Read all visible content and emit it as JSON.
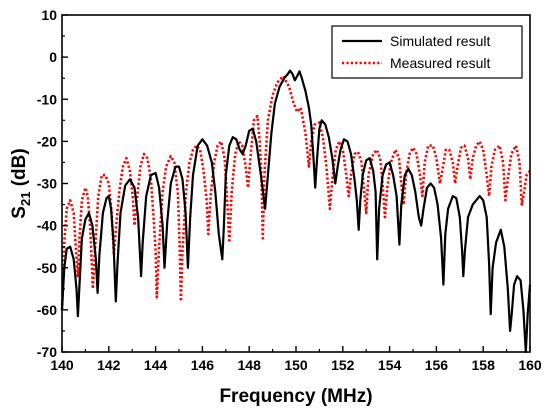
{
  "chart_data": {
    "type": "line",
    "xlabel": "Frequency (MHz)",
    "ylabel": {
      "base": "S",
      "sub": "21",
      "rest": " (dB)"
    },
    "xlim": [
      140,
      160
    ],
    "ylim": [
      -70,
      10
    ],
    "xticks": [
      "140",
      "142",
      "144",
      "146",
      "148",
      "150",
      "152",
      "154",
      "156",
      "158",
      "160"
    ],
    "yticks": [
      "10",
      "0",
      "-10",
      "-20",
      "-30",
      "-40",
      "-50",
      "-60",
      "-70"
    ],
    "legend_position": "top-right",
    "grid": false,
    "series": [
      {
        "name": "Simulated result",
        "color": "#000000",
        "style": "solid",
        "points": [
          [
            140.0,
            -60
          ],
          [
            140.1,
            -50
          ],
          [
            140.2,
            -45.5
          ],
          [
            140.35,
            -45
          ],
          [
            140.5,
            -48
          ],
          [
            140.62,
            -55
          ],
          [
            140.68,
            -61.5
          ],
          [
            140.75,
            -54
          ],
          [
            140.85,
            -43
          ],
          [
            141.0,
            -38.5
          ],
          [
            141.15,
            -37
          ],
          [
            141.3,
            -40
          ],
          [
            141.45,
            -48
          ],
          [
            141.52,
            -56
          ],
          [
            141.6,
            -47
          ],
          [
            141.75,
            -37
          ],
          [
            141.9,
            -33.5
          ],
          [
            142.0,
            -33
          ],
          [
            142.1,
            -36
          ],
          [
            142.2,
            -44
          ],
          [
            142.3,
            -58
          ],
          [
            142.37,
            -49
          ],
          [
            142.5,
            -37
          ],
          [
            142.7,
            -30.5
          ],
          [
            142.9,
            -29
          ],
          [
            143.1,
            -31
          ],
          [
            143.25,
            -38
          ],
          [
            143.38,
            -52
          ],
          [
            143.45,
            -44
          ],
          [
            143.6,
            -33
          ],
          [
            143.8,
            -28
          ],
          [
            144.0,
            -27.5
          ],
          [
            144.15,
            -31
          ],
          [
            144.3,
            -40
          ],
          [
            144.38,
            -50
          ],
          [
            144.5,
            -39
          ],
          [
            144.65,
            -30
          ],
          [
            144.85,
            -26
          ],
          [
            145.0,
            -26
          ],
          [
            145.15,
            -29
          ],
          [
            145.28,
            -37
          ],
          [
            145.38,
            -50
          ],
          [
            145.48,
            -38
          ],
          [
            145.6,
            -28
          ],
          [
            145.8,
            -21
          ],
          [
            146.0,
            -19.5
          ],
          [
            146.2,
            -21
          ],
          [
            146.4,
            -25
          ],
          [
            146.55,
            -32
          ],
          [
            146.7,
            -42
          ],
          [
            146.85,
            -48
          ],
          [
            146.92,
            -40
          ],
          [
            147.0,
            -28
          ],
          [
            147.15,
            -21
          ],
          [
            147.3,
            -19
          ],
          [
            147.45,
            -19.5
          ],
          [
            147.6,
            -22
          ],
          [
            147.72,
            -23
          ],
          [
            147.85,
            -21
          ],
          [
            148.0,
            -17.5
          ],
          [
            148.15,
            -17
          ],
          [
            148.3,
            -20
          ],
          [
            148.5,
            -28
          ],
          [
            148.68,
            -36
          ],
          [
            148.8,
            -28
          ],
          [
            148.95,
            -18
          ],
          [
            149.1,
            -11
          ],
          [
            149.3,
            -7
          ],
          [
            149.5,
            -5
          ],
          [
            149.65,
            -4
          ],
          [
            149.75,
            -3.2
          ],
          [
            149.85,
            -4
          ],
          [
            149.95,
            -5.5
          ],
          [
            150.05,
            -4.5
          ],
          [
            150.15,
            -3.4
          ],
          [
            150.25,
            -5
          ],
          [
            150.4,
            -8
          ],
          [
            150.55,
            -12
          ],
          [
            150.65,
            -16
          ],
          [
            150.75,
            -24
          ],
          [
            150.82,
            -31
          ],
          [
            150.9,
            -24
          ],
          [
            151.0,
            -17
          ],
          [
            151.1,
            -15
          ],
          [
            151.25,
            -16
          ],
          [
            151.4,
            -19
          ],
          [
            151.55,
            -24
          ],
          [
            151.68,
            -30
          ],
          [
            151.78,
            -26
          ],
          [
            151.9,
            -22
          ],
          [
            152.05,
            -19.5
          ],
          [
            152.2,
            -20
          ],
          [
            152.35,
            -23
          ],
          [
            152.5,
            -29
          ],
          [
            152.6,
            -34
          ],
          [
            152.68,
            -41
          ],
          [
            152.75,
            -34
          ],
          [
            152.85,
            -28
          ],
          [
            153.0,
            -24.5
          ],
          [
            153.15,
            -24
          ],
          [
            153.3,
            -27
          ],
          [
            153.4,
            -32
          ],
          [
            153.47,
            -48
          ],
          [
            153.55,
            -36
          ],
          [
            153.7,
            -28
          ],
          [
            153.85,
            -25.5
          ],
          [
            154.0,
            -25
          ],
          [
            154.15,
            -28
          ],
          [
            154.3,
            -33
          ],
          [
            154.42,
            -44.5
          ],
          [
            154.5,
            -35
          ],
          [
            154.65,
            -28
          ],
          [
            154.8,
            -26.5
          ],
          [
            154.95,
            -28
          ],
          [
            155.1,
            -32
          ],
          [
            155.25,
            -38
          ],
          [
            155.35,
            -40
          ],
          [
            155.45,
            -36
          ],
          [
            155.6,
            -31
          ],
          [
            155.75,
            -30
          ],
          [
            155.9,
            -31
          ],
          [
            156.05,
            -35
          ],
          [
            156.2,
            -43
          ],
          [
            156.3,
            -54
          ],
          [
            156.38,
            -42
          ],
          [
            156.5,
            -36
          ],
          [
            156.7,
            -33
          ],
          [
            156.85,
            -33.5
          ],
          [
            157.0,
            -38
          ],
          [
            157.1,
            -46
          ],
          [
            157.15,
            -52
          ],
          [
            157.22,
            -46
          ],
          [
            157.35,
            -38
          ],
          [
            157.55,
            -35
          ],
          [
            157.7,
            -34
          ],
          [
            157.85,
            -33
          ],
          [
            158.0,
            -34
          ],
          [
            158.15,
            -38
          ],
          [
            158.25,
            -49
          ],
          [
            158.32,
            -61
          ],
          [
            158.4,
            -50
          ],
          [
            158.55,
            -44
          ],
          [
            158.75,
            -41
          ],
          [
            158.9,
            -45
          ],
          [
            159.05,
            -55
          ],
          [
            159.15,
            -65
          ],
          [
            159.22,
            -61
          ],
          [
            159.32,
            -54
          ],
          [
            159.45,
            -52
          ],
          [
            159.6,
            -53
          ],
          [
            159.72,
            -60
          ],
          [
            159.82,
            -70
          ],
          [
            159.9,
            -61
          ],
          [
            160.0,
            -54
          ]
        ]
      },
      {
        "name": "Measured result",
        "color": "#ff0000",
        "style": "dotted",
        "points": [
          [
            140.0,
            -60
          ],
          [
            140.1,
            -44
          ],
          [
            140.2,
            -36
          ],
          [
            140.35,
            -34
          ],
          [
            140.5,
            -37
          ],
          [
            140.6,
            -46
          ],
          [
            140.68,
            -52
          ],
          [
            140.75,
            -43
          ],
          [
            140.85,
            -34
          ],
          [
            141.0,
            -31
          ],
          [
            141.1,
            -33
          ],
          [
            141.2,
            -40
          ],
          [
            141.32,
            -55
          ],
          [
            141.42,
            -45
          ],
          [
            141.55,
            -33
          ],
          [
            141.7,
            -28
          ],
          [
            141.85,
            -28
          ],
          [
            142.0,
            -30
          ],
          [
            142.12,
            -37
          ],
          [
            142.22,
            -47
          ],
          [
            142.3,
            -41
          ],
          [
            142.45,
            -32
          ],
          [
            142.6,
            -26
          ],
          [
            142.75,
            -24
          ],
          [
            142.9,
            -27
          ],
          [
            143.02,
            -33
          ],
          [
            143.1,
            -40
          ],
          [
            143.22,
            -33
          ],
          [
            143.35,
            -26
          ],
          [
            143.5,
            -23
          ],
          [
            143.65,
            -24
          ],
          [
            143.8,
            -29
          ],
          [
            143.9,
            -37
          ],
          [
            144.0,
            -46
          ],
          [
            144.05,
            -57
          ],
          [
            144.15,
            -45
          ],
          [
            144.3,
            -32
          ],
          [
            144.45,
            -26
          ],
          [
            144.65,
            -23.5
          ],
          [
            144.8,
            -25
          ],
          [
            144.95,
            -32
          ],
          [
            145.03,
            -45
          ],
          [
            145.08,
            -58
          ],
          [
            145.15,
            -46
          ],
          [
            145.3,
            -32
          ],
          [
            145.45,
            -25
          ],
          [
            145.6,
            -22
          ],
          [
            145.75,
            -21
          ],
          [
            145.9,
            -22
          ],
          [
            146.05,
            -27
          ],
          [
            146.18,
            -34
          ],
          [
            146.25,
            -42
          ],
          [
            146.35,
            -33
          ],
          [
            146.5,
            -25
          ],
          [
            146.65,
            -21
          ],
          [
            146.8,
            -20
          ],
          [
            146.95,
            -24
          ],
          [
            147.05,
            -33
          ],
          [
            147.15,
            -44
          ],
          [
            147.25,
            -32
          ],
          [
            147.4,
            -23
          ],
          [
            147.55,
            -20
          ],
          [
            147.7,
            -21
          ],
          [
            147.85,
            -26
          ],
          [
            147.95,
            -31
          ],
          [
            148.05,
            -24
          ],
          [
            148.2,
            -15
          ],
          [
            148.35,
            -14
          ],
          [
            148.45,
            -20
          ],
          [
            148.52,
            -28
          ],
          [
            148.58,
            -43
          ],
          [
            148.65,
            -28
          ],
          [
            148.8,
            -15
          ],
          [
            149.0,
            -9
          ],
          [
            149.2,
            -6
          ],
          [
            149.45,
            -4.5
          ],
          [
            149.7,
            -7
          ],
          [
            149.9,
            -11
          ],
          [
            150.05,
            -13
          ],
          [
            150.2,
            -12
          ],
          [
            150.4,
            -18
          ],
          [
            150.55,
            -26
          ],
          [
            150.65,
            -20
          ],
          [
            150.8,
            -16
          ],
          [
            151.0,
            -15.5
          ],
          [
            151.15,
            -19
          ],
          [
            151.3,
            -26
          ],
          [
            151.45,
            -36
          ],
          [
            151.55,
            -29
          ],
          [
            151.7,
            -22
          ],
          [
            151.85,
            -20
          ],
          [
            152.0,
            -22
          ],
          [
            152.15,
            -28
          ],
          [
            152.25,
            -33
          ],
          [
            152.35,
            -28
          ],
          [
            152.5,
            -23
          ],
          [
            152.65,
            -22.5
          ],
          [
            152.8,
            -25
          ],
          [
            152.9,
            -31
          ],
          [
            153.0,
            -37
          ],
          [
            153.1,
            -28
          ],
          [
            153.3,
            -23
          ],
          [
            153.45,
            -22
          ],
          [
            153.6,
            -24
          ],
          [
            153.7,
            -30
          ],
          [
            153.8,
            -38
          ],
          [
            153.9,
            -31
          ],
          [
            154.05,
            -25
          ],
          [
            154.25,
            -22
          ],
          [
            154.4,
            -24
          ],
          [
            154.5,
            -30
          ],
          [
            154.6,
            -35
          ],
          [
            154.7,
            -28
          ],
          [
            154.85,
            -23
          ],
          [
            155.0,
            -21.5
          ],
          [
            155.15,
            -23
          ],
          [
            155.3,
            -28
          ],
          [
            155.4,
            -33
          ],
          [
            155.5,
            -25
          ],
          [
            155.65,
            -21
          ],
          [
            155.85,
            -21
          ],
          [
            156.0,
            -24
          ],
          [
            156.15,
            -30
          ],
          [
            156.25,
            -27
          ],
          [
            156.4,
            -22
          ],
          [
            156.55,
            -22
          ],
          [
            156.7,
            -25
          ],
          [
            156.8,
            -30
          ],
          [
            156.9,
            -26
          ],
          [
            157.05,
            -21.5
          ],
          [
            157.2,
            -21
          ],
          [
            157.35,
            -24
          ],
          [
            157.45,
            -29
          ],
          [
            157.55,
            -24
          ],
          [
            157.7,
            -21
          ],
          [
            157.85,
            -20
          ],
          [
            158.0,
            -22
          ],
          [
            158.15,
            -28
          ],
          [
            158.25,
            -33
          ],
          [
            158.35,
            -26
          ],
          [
            158.5,
            -22
          ],
          [
            158.7,
            -21
          ],
          [
            158.85,
            -25
          ],
          [
            158.95,
            -34
          ],
          [
            159.05,
            -29
          ],
          [
            159.2,
            -23
          ],
          [
            159.4,
            -21
          ],
          [
            159.55,
            -25
          ],
          [
            159.65,
            -35
          ],
          [
            159.75,
            -32
          ],
          [
            159.85,
            -28
          ],
          [
            160.0,
            -27
          ]
        ]
      }
    ]
  }
}
